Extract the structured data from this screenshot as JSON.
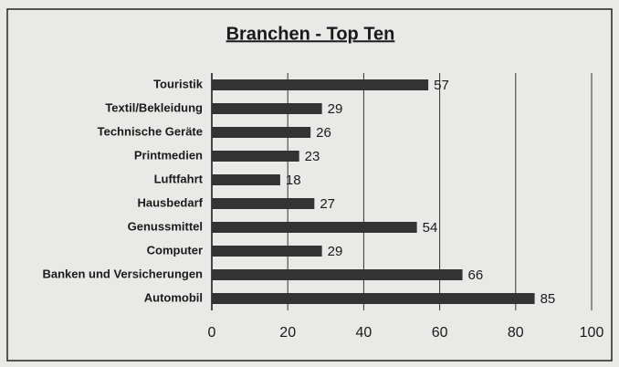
{
  "chart_data": {
    "type": "bar",
    "orientation": "horizontal",
    "title": "Branchen - Top Ten",
    "categories": [
      "Touristik",
      "Textil/Bekleidung",
      "Technische Geräte",
      "Printmedien",
      "Luftfahrt",
      "Hausbedarf",
      "Genussmittel",
      "Computer",
      "Banken und Versicherungen",
      "Automobil"
    ],
    "values": [
      57,
      29,
      26,
      23,
      18,
      27,
      54,
      29,
      66,
      85
    ],
    "color": "#333333",
    "xlim": [
      0,
      100
    ],
    "xticks": [
      0,
      20,
      40,
      60,
      80,
      100
    ],
    "grid": true
  }
}
